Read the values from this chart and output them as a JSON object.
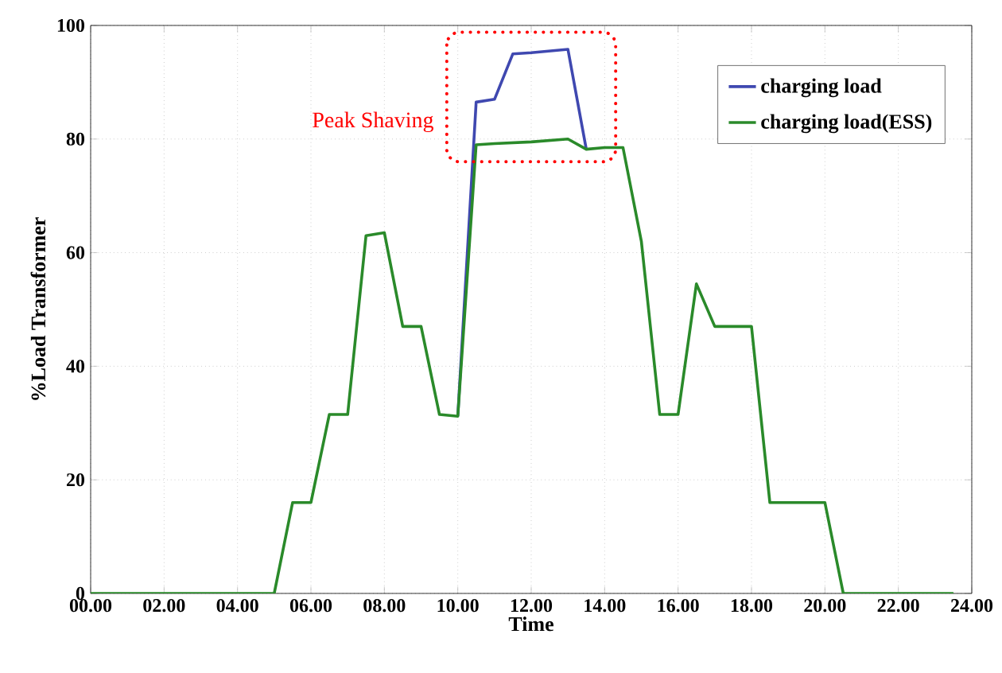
{
  "chart_data": {
    "type": "line",
    "xlabel": "Time",
    "ylabel": "%Load Transformer",
    "annotations": [
      "Peak Shaving"
    ],
    "xlim": [
      0,
      24
    ],
    "ylim": [
      0,
      100
    ],
    "xticks": [
      {
        "value": 0,
        "label": "00.00"
      },
      {
        "value": 2,
        "label": "02.00"
      },
      {
        "value": 4,
        "label": "04.00"
      },
      {
        "value": 6,
        "label": "06.00"
      },
      {
        "value": 8,
        "label": "08.00"
      },
      {
        "value": 10,
        "label": "10.00"
      },
      {
        "value": 12,
        "label": "12.00"
      },
      {
        "value": 14,
        "label": "14.00"
      },
      {
        "value": 16,
        "label": "16.00"
      },
      {
        "value": 18,
        "label": "18.00"
      },
      {
        "value": 20,
        "label": "20.00"
      },
      {
        "value": 22,
        "label": "22.00"
      },
      {
        "value": 24,
        "label": "24.00"
      }
    ],
    "yticks": [
      0,
      20,
      40,
      60,
      80,
      100
    ],
    "grid": true,
    "legend": "top right",
    "marker": "none",
    "line_style": "solid",
    "series": [
      {
        "name": "charging load",
        "color": "#3f48b0",
        "x": [
          10,
          10.5,
          11,
          11.5,
          12,
          13,
          13.5
        ],
        "values": [
          31.2,
          86.5,
          87,
          95,
          95.2,
          95.8,
          78.2
        ]
      },
      {
        "name": "charging load(ESS)",
        "color": "#2a8a2a",
        "x": [
          0,
          5,
          5.5,
          6,
          6.5,
          7,
          7.5,
          8,
          8.5,
          9,
          9.5,
          10,
          10.5,
          11,
          12,
          13,
          13.5,
          14,
          14.5,
          15,
          15.5,
          16,
          16.5,
          17,
          18,
          18.5,
          20,
          20.5,
          23.5
        ],
        "values": [
          0,
          0,
          16,
          16,
          31.5,
          31.5,
          63,
          63.5,
          47,
          47,
          31.5,
          31.2,
          79,
          79.2,
          79.5,
          80,
          78.2,
          78.5,
          78.5,
          62,
          31.5,
          31.5,
          54.5,
          47,
          47,
          16,
          16,
          0,
          0
        ]
      }
    ]
  }
}
